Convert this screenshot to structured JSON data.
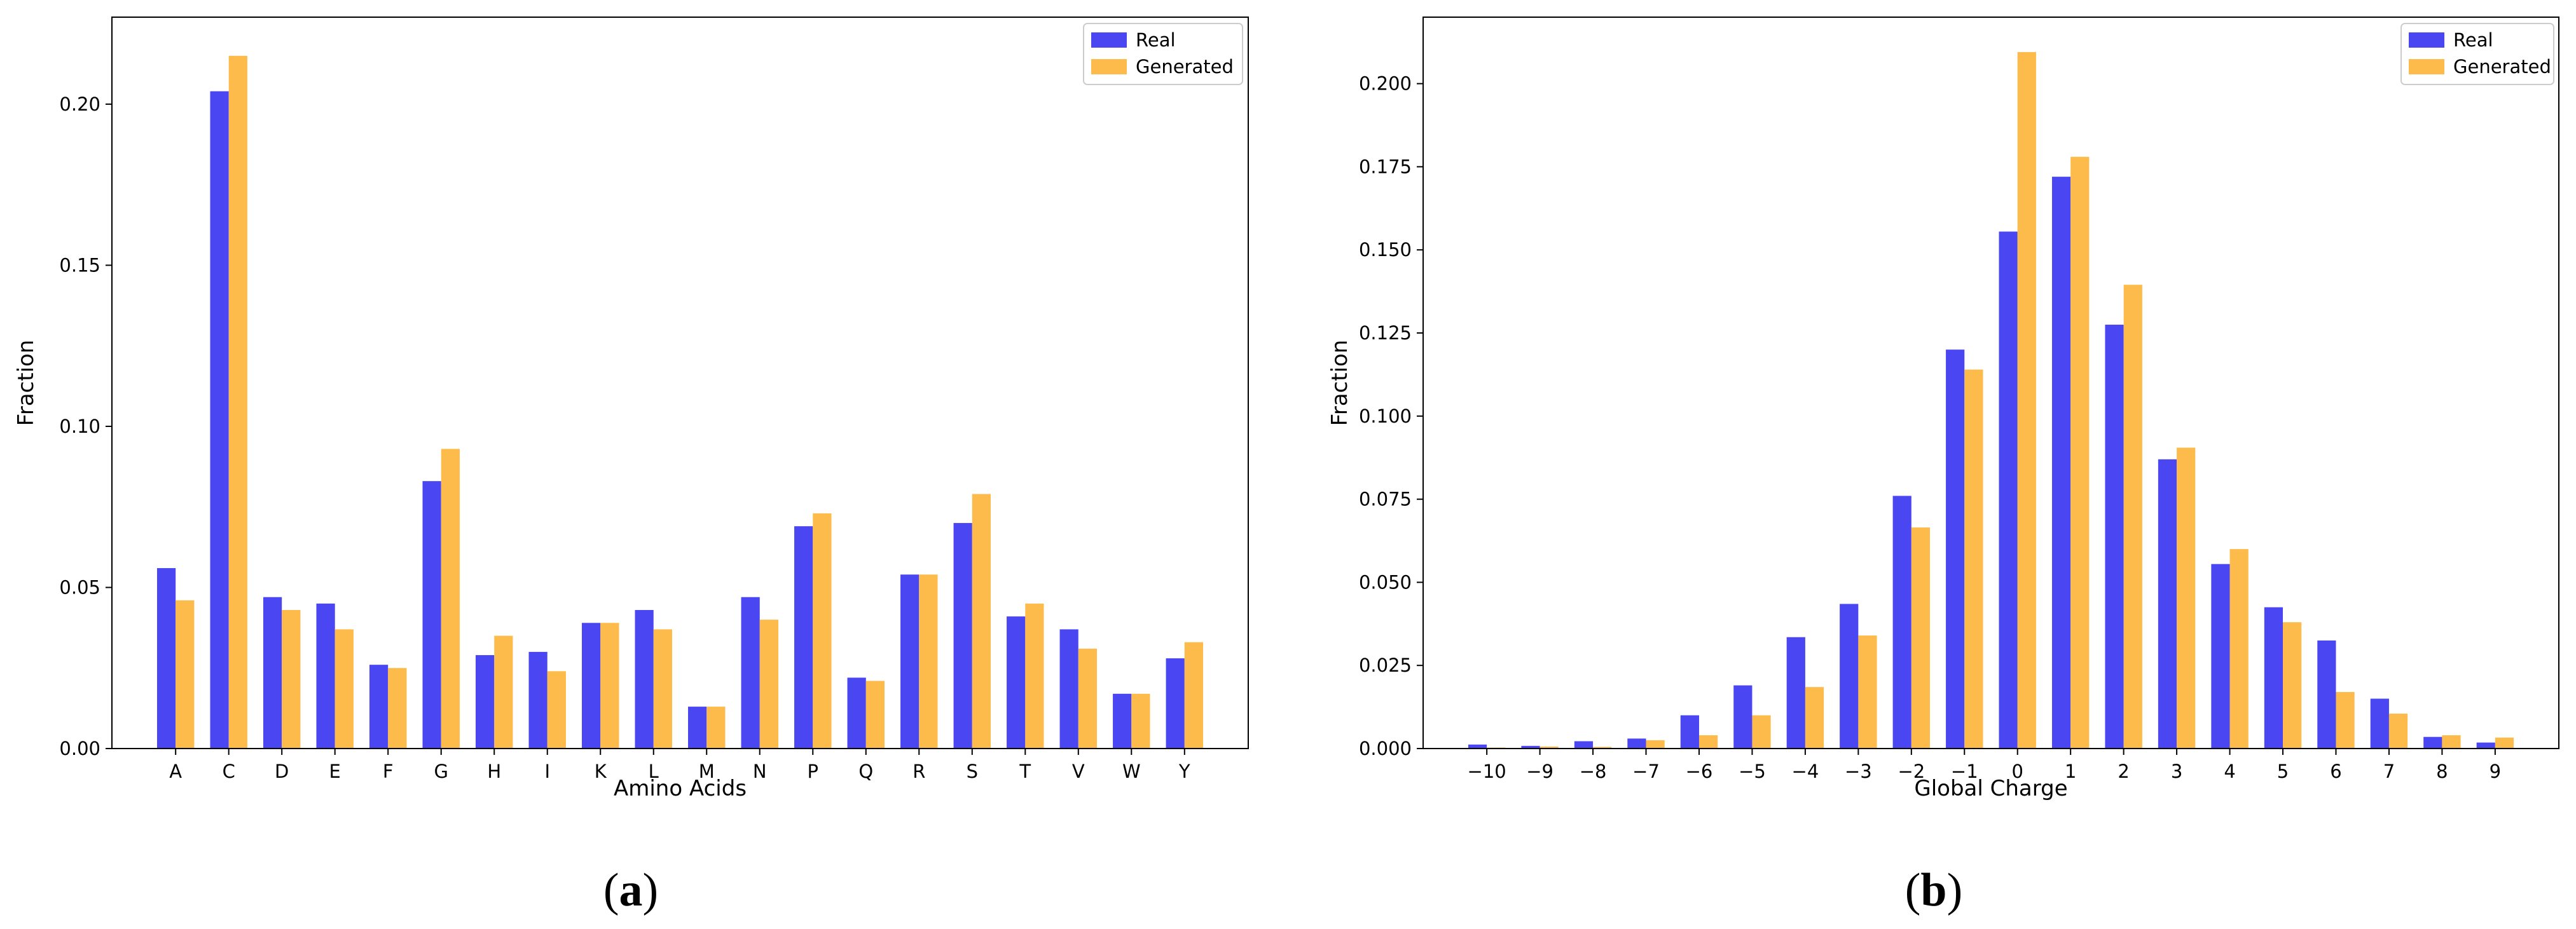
{
  "chart_data": [
    {
      "id": "a",
      "type": "bar",
      "caption": {
        "open": "(",
        "letter": "a",
        "close": ")"
      },
      "title": "",
      "xlabel": "Amino Acids",
      "ylabel": "Fraction",
      "ylim": [
        0,
        0.227
      ],
      "yticks": [
        0.0,
        0.05,
        0.1,
        0.15,
        0.2
      ],
      "ytick_labels": [
        "0.00",
        "0.05",
        "0.10",
        "0.15",
        "0.20"
      ],
      "categories": [
        "A",
        "C",
        "D",
        "E",
        "F",
        "G",
        "H",
        "I",
        "K",
        "L",
        "M",
        "N",
        "P",
        "Q",
        "R",
        "S",
        "T",
        "V",
        "W",
        "Y"
      ],
      "legend_position": "top-right",
      "series": [
        {
          "name": "Real",
          "color": "#4a46f1",
          "values": [
            0.056,
            0.204,
            0.047,
            0.045,
            0.026,
            0.083,
            0.029,
            0.03,
            0.039,
            0.043,
            0.013,
            0.047,
            0.069,
            0.022,
            0.054,
            0.07,
            0.041,
            0.037,
            0.017,
            0.028
          ]
        },
        {
          "name": "Generated",
          "color": "#fdbb4b",
          "values": [
            0.046,
            0.215,
            0.043,
            0.037,
            0.025,
            0.093,
            0.035,
            0.024,
            0.039,
            0.037,
            0.013,
            0.04,
            0.073,
            0.021,
            0.054,
            0.079,
            0.045,
            0.031,
            0.017,
            0.033
          ]
        }
      ]
    },
    {
      "id": "b",
      "type": "bar",
      "caption": {
        "open": "(",
        "letter": "b",
        "close": ")"
      },
      "title": "",
      "xlabel": "Global Charge",
      "ylabel": "Fraction",
      "ylim": [
        0,
        0.22
      ],
      "yticks": [
        0.0,
        0.025,
        0.05,
        0.075,
        0.1,
        0.125,
        0.15,
        0.175,
        0.2
      ],
      "ytick_labels": [
        "0.000",
        "0.025",
        "0.050",
        "0.075",
        "0.100",
        "0.125",
        "0.150",
        "0.175",
        "0.200"
      ],
      "categories": [
        "−10",
        "−9",
        "−8",
        "−7",
        "−6",
        "−5",
        "−4",
        "−3",
        "−2",
        "−1",
        "0",
        "1",
        "2",
        "3",
        "4",
        "5",
        "6",
        "7",
        "8",
        "9"
      ],
      "legend_position": "top-right",
      "series": [
        {
          "name": "Real",
          "color": "#4a46f1",
          "values": [
            0.0012,
            0.0008,
            0.0022,
            0.003,
            0.01,
            0.019,
            0.0335,
            0.0435,
            0.076,
            0.12,
            0.1555,
            0.172,
            0.1275,
            0.087,
            0.0555,
            0.0425,
            0.0325,
            0.015,
            0.0035,
            0.0018
          ]
        },
        {
          "name": "Generated",
          "color": "#fdbb4b",
          "values": [
            0.0003,
            0.0006,
            0.0005,
            0.0025,
            0.004,
            0.01,
            0.0185,
            0.034,
            0.0665,
            0.114,
            0.2095,
            0.178,
            0.1395,
            0.0905,
            0.06,
            0.038,
            0.017,
            0.0105,
            0.004,
            0.0033
          ]
        }
      ]
    }
  ]
}
